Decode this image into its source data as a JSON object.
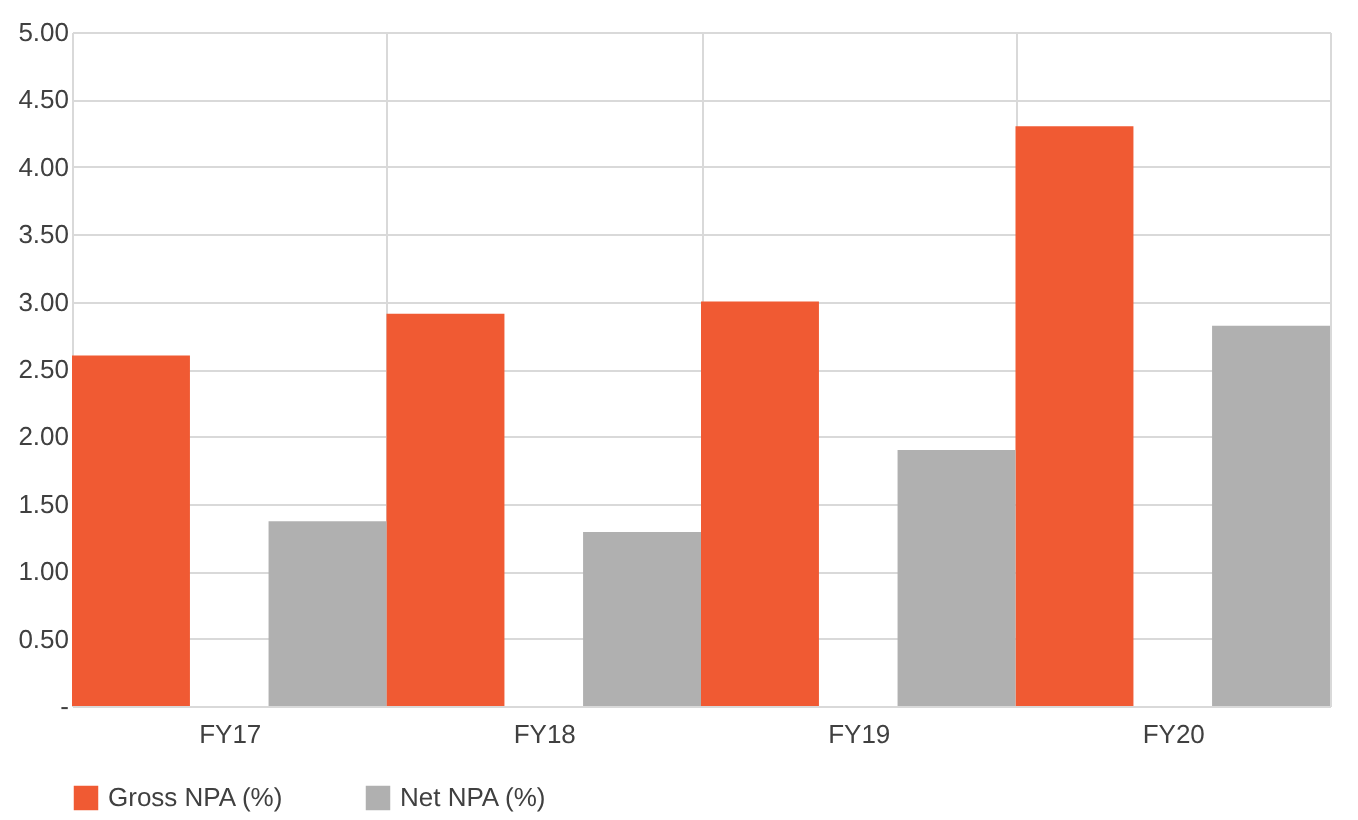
{
  "chart_data": {
    "type": "bar",
    "categories": [
      "FY17",
      "FY18",
      "FY19",
      "FY20"
    ],
    "series": [
      {
        "name": "Gross NPA (%)",
        "color": "#f05a33",
        "values": [
          2.6,
          2.91,
          3.0,
          4.3
        ]
      },
      {
        "name": "Net NPA (%)",
        "color": "#b0b0b0",
        "values": [
          1.37,
          1.29,
          1.9,
          2.82
        ]
      }
    ],
    "ylim": [
      0,
      5
    ],
    "yticks": [
      {
        "value": 0,
        "label": "-"
      },
      {
        "value": 0.5,
        "label": "0.50"
      },
      {
        "value": 1,
        "label": "1.00"
      },
      {
        "value": 1.5,
        "label": "1.50"
      },
      {
        "value": 2,
        "label": "2.00"
      },
      {
        "value": 2.5,
        "label": "2.50"
      },
      {
        "value": 3,
        "label": "3.00"
      },
      {
        "value": 3.5,
        "label": "3.50"
      },
      {
        "value": 4,
        "label": "4.00"
      },
      {
        "value": 4.5,
        "label": "4.50"
      },
      {
        "value": 5,
        "label": "5.00"
      }
    ],
    "grid": true,
    "legend": "bottom"
  }
}
